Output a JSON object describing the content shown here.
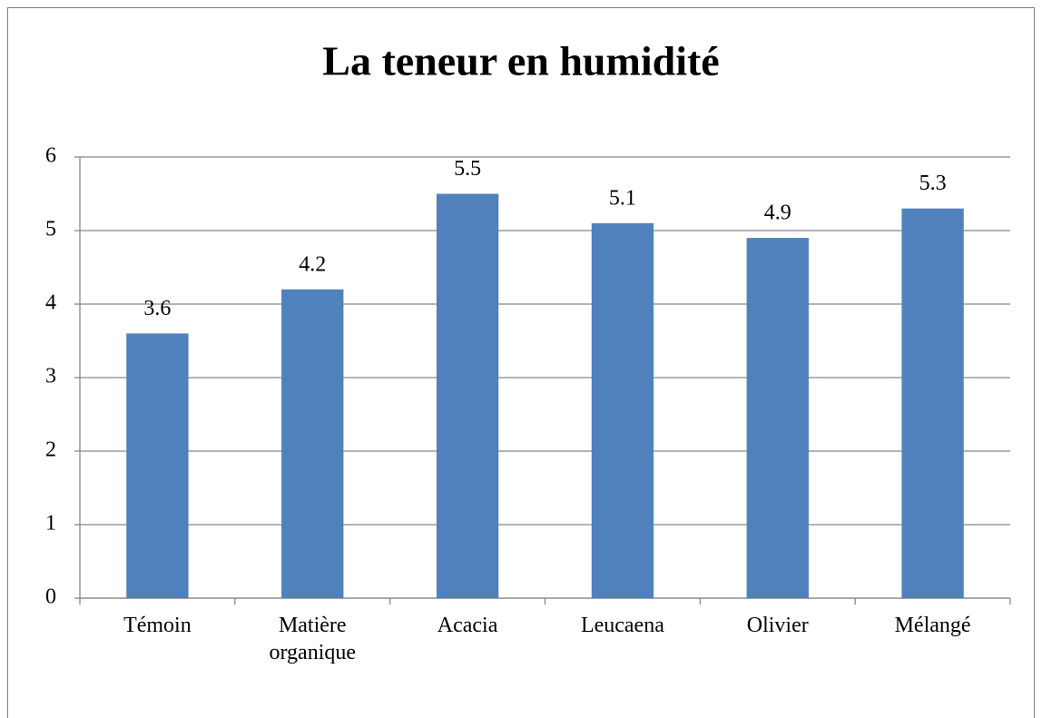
{
  "chart_data": {
    "type": "bar",
    "title": "La teneur en  humidité",
    "categories": [
      "Témoin",
      "Matière organique",
      "Acacia",
      "Leucaena",
      "Olivier",
      "Mélangé"
    ],
    "values": [
      3.6,
      4.2,
      5.5,
      5.1,
      4.9,
      5.3
    ],
    "color": "#4f81bd",
    "ylim": [
      0,
      6
    ],
    "yticks": [
      0,
      1,
      2,
      3,
      4,
      5,
      6
    ],
    "grid": true,
    "data_labels": true
  }
}
